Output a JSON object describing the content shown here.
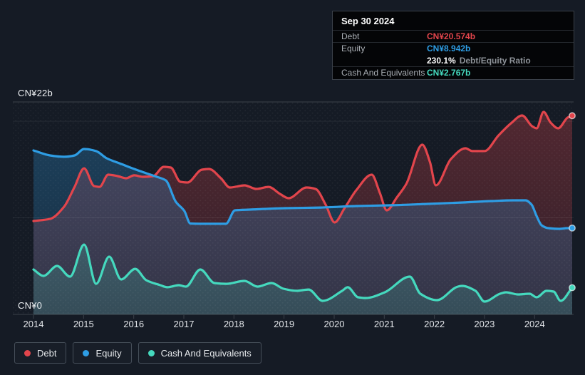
{
  "page": {
    "background": "#151B25"
  },
  "tooltip": {
    "title": "Sep 30 2024",
    "rows": {
      "debt": {
        "label": "Debt",
        "value": "CN¥20.574b",
        "color": "#E2454C"
      },
      "equity": {
        "label": "Equity",
        "value": "CN¥8.942b",
        "color": "#2E9DE4"
      },
      "ratio": {
        "value": "230.1%",
        "label": "Debt/Equity Ratio"
      },
      "cash": {
        "label": "Cash And Equivalents",
        "value": "CN¥2.767b",
        "color": "#45D9BE"
      }
    }
  },
  "legend": {
    "items": [
      {
        "label": "Debt",
        "color": "#E2454C"
      },
      {
        "label": "Equity",
        "color": "#2E9DE4"
      },
      {
        "label": "Cash And Equivalents",
        "color": "#45D9BE"
      }
    ]
  },
  "chart_data": {
    "type": "area",
    "unit": "CN¥ billions",
    "x_range": [
      2014,
      2024.75
    ],
    "ylim": [
      0,
      22
    ],
    "y_axis_labels": {
      "top": "CN¥22b",
      "zero": "CN¥0"
    },
    "x_ticks": [
      2014,
      2015,
      2016,
      2017,
      2018,
      2019,
      2020,
      2021,
      2022,
      2023,
      2024
    ],
    "gridlines": [
      {
        "value": 22,
        "strong": true
      },
      {
        "value": 20,
        "strong": false
      },
      {
        "value": 10,
        "strong": false
      },
      {
        "value": 0,
        "strong": true
      }
    ],
    "series": [
      {
        "name": "Debt",
        "color": "#E2454C",
        "points": [
          [
            2014.0,
            9.67
          ],
          [
            2014.33,
            9.89
          ],
          [
            2014.61,
            11.15
          ],
          [
            2014.82,
            13.21
          ],
          [
            2015.01,
            15.13
          ],
          [
            2015.21,
            13.29
          ],
          [
            2015.32,
            13.21
          ],
          [
            2015.49,
            14.47
          ],
          [
            2015.68,
            14.32
          ],
          [
            2015.85,
            14.1
          ],
          [
            2016.01,
            14.4
          ],
          [
            2016.18,
            14.25
          ],
          [
            2016.39,
            14.32
          ],
          [
            2016.6,
            15.28
          ],
          [
            2016.74,
            15.21
          ],
          [
            2016.93,
            13.73
          ],
          [
            2017.07,
            13.66
          ],
          [
            2017.36,
            14.99
          ],
          [
            2017.5,
            15.06
          ],
          [
            2017.74,
            14.1
          ],
          [
            2017.92,
            13.14
          ],
          [
            2018.21,
            13.36
          ],
          [
            2018.45,
            12.99
          ],
          [
            2018.69,
            13.21
          ],
          [
            2018.92,
            12.48
          ],
          [
            2019.09,
            12.03
          ],
          [
            2019.45,
            13.14
          ],
          [
            2019.63,
            12.99
          ],
          [
            2019.83,
            11.37
          ],
          [
            2020.01,
            9.52
          ],
          [
            2020.2,
            10.93
          ],
          [
            2020.44,
            12.85
          ],
          [
            2020.75,
            14.47
          ],
          [
            2020.91,
            12.62
          ],
          [
            2021.05,
            10.78
          ],
          [
            2021.25,
            12.11
          ],
          [
            2021.44,
            13.51
          ],
          [
            2021.76,
            17.57
          ],
          [
            2021.91,
            15.8
          ],
          [
            2022.03,
            13.36
          ],
          [
            2022.33,
            16.09
          ],
          [
            2022.62,
            17.2
          ],
          [
            2022.76,
            16.91
          ],
          [
            2023.0,
            16.91
          ],
          [
            2023.28,
            18.53
          ],
          [
            2023.53,
            19.79
          ],
          [
            2023.75,
            20.6
          ],
          [
            2023.95,
            19.49
          ],
          [
            2024.04,
            19.27
          ],
          [
            2024.18,
            20.97
          ],
          [
            2024.32,
            19.86
          ],
          [
            2024.47,
            19.27
          ],
          [
            2024.66,
            20.38
          ],
          [
            2024.75,
            20.574
          ]
        ]
      },
      {
        "name": "Equity",
        "color": "#2E9DE4",
        "points": [
          [
            2014.0,
            16.98
          ],
          [
            2014.33,
            16.46
          ],
          [
            2014.61,
            16.32
          ],
          [
            2014.82,
            16.46
          ],
          [
            2015.01,
            17.13
          ],
          [
            2015.25,
            16.91
          ],
          [
            2015.46,
            16.17
          ],
          [
            2015.75,
            15.58
          ],
          [
            2016.01,
            15.06
          ],
          [
            2016.25,
            14.62
          ],
          [
            2016.46,
            14.25
          ],
          [
            2016.64,
            13.88
          ],
          [
            2016.84,
            11.67
          ],
          [
            2017.01,
            10.71
          ],
          [
            2017.13,
            9.41
          ],
          [
            2017.31,
            9.38
          ],
          [
            2017.84,
            9.38
          ],
          [
            2018.02,
            10.78
          ],
          [
            2018.31,
            10.85
          ],
          [
            2019.02,
            11.0
          ],
          [
            2019.73,
            11.07
          ],
          [
            2020.44,
            11.22
          ],
          [
            2021.15,
            11.3
          ],
          [
            2021.86,
            11.44
          ],
          [
            2022.57,
            11.59
          ],
          [
            2023.14,
            11.74
          ],
          [
            2023.57,
            11.81
          ],
          [
            2023.82,
            11.81
          ],
          [
            2023.94,
            11.37
          ],
          [
            2024.04,
            10.19
          ],
          [
            2024.14,
            9.23
          ],
          [
            2024.28,
            8.93
          ],
          [
            2024.49,
            8.86
          ],
          [
            2024.64,
            8.93
          ],
          [
            2024.75,
            8.942
          ]
        ]
      },
      {
        "name": "Cash And Equivalents",
        "color": "#45D9BE",
        "points": [
          [
            2014.0,
            4.65
          ],
          [
            2014.2,
            3.99
          ],
          [
            2014.47,
            5.02
          ],
          [
            2014.73,
            3.91
          ],
          [
            2015.01,
            7.23
          ],
          [
            2015.25,
            3.17
          ],
          [
            2015.51,
            5.98
          ],
          [
            2015.75,
            3.62
          ],
          [
            2016.03,
            4.72
          ],
          [
            2016.25,
            3.54
          ],
          [
            2016.53,
            3.03
          ],
          [
            2016.67,
            2.81
          ],
          [
            2016.9,
            3.03
          ],
          [
            2017.04,
            2.88
          ],
          [
            2017.33,
            4.65
          ],
          [
            2017.61,
            3.25
          ],
          [
            2017.85,
            3.17
          ],
          [
            2018.21,
            3.47
          ],
          [
            2018.47,
            2.88
          ],
          [
            2018.75,
            3.25
          ],
          [
            2018.99,
            2.66
          ],
          [
            2019.25,
            2.44
          ],
          [
            2019.49,
            2.58
          ],
          [
            2019.77,
            1.4
          ],
          [
            2020.16,
            2.44
          ],
          [
            2020.27,
            2.81
          ],
          [
            2020.48,
            1.77
          ],
          [
            2020.63,
            1.7
          ],
          [
            2021.01,
            2.29
          ],
          [
            2021.51,
            3.91
          ],
          [
            2021.72,
            2.14
          ],
          [
            2022.05,
            1.48
          ],
          [
            2022.47,
            2.88
          ],
          [
            2022.55,
            2.95
          ],
          [
            2022.82,
            2.44
          ],
          [
            2023.0,
            1.33
          ],
          [
            2023.31,
            2.14
          ],
          [
            2023.43,
            2.29
          ],
          [
            2023.67,
            2.07
          ],
          [
            2023.9,
            2.14
          ],
          [
            2024.04,
            1.77
          ],
          [
            2024.24,
            2.44
          ],
          [
            2024.38,
            2.36
          ],
          [
            2024.52,
            1.4
          ],
          [
            2024.75,
            2.767
          ]
        ]
      }
    ]
  }
}
